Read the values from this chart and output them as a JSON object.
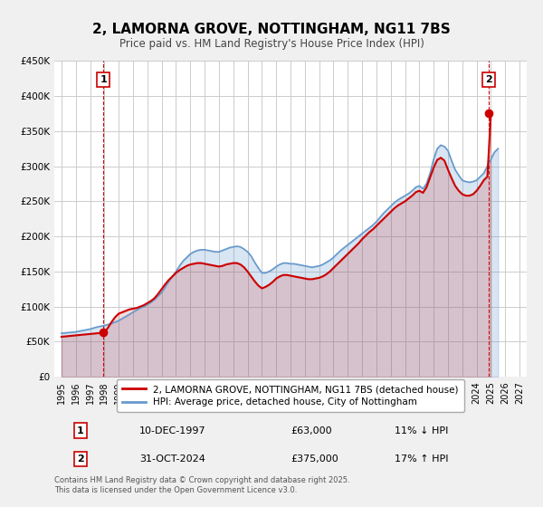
{
  "title": "2, LAMORNA GROVE, NOTTINGHAM, NG11 7BS",
  "subtitle": "Price paid vs. HM Land Registry's House Price Index (HPI)",
  "xlabel": "",
  "ylabel": "",
  "ylim": [
    0,
    450000
  ],
  "xlim": [
    1994.5,
    2027.5
  ],
  "yticks": [
    0,
    50000,
    100000,
    150000,
    200000,
    250000,
    300000,
    350000,
    400000,
    450000
  ],
  "ytick_labels": [
    "£0",
    "£50K",
    "£100K",
    "£150K",
    "£200K",
    "£250K",
    "£300K",
    "£350K",
    "£400K",
    "£450K"
  ],
  "xticks": [
    1995,
    1996,
    1997,
    1998,
    1999,
    2000,
    2001,
    2002,
    2003,
    2004,
    2005,
    2006,
    2007,
    2008,
    2009,
    2010,
    2011,
    2012,
    2013,
    2014,
    2015,
    2016,
    2017,
    2018,
    2019,
    2020,
    2021,
    2022,
    2023,
    2024,
    2025,
    2026,
    2027
  ],
  "bg_color": "#f0f0f0",
  "plot_bg_color": "#ffffff",
  "grid_color": "#cccccc",
  "hpi_color": "#6699cc",
  "price_color": "#cc0000",
  "sale1_x": 1997.92,
  "sale1_y": 63000,
  "sale2_x": 2024.83,
  "sale2_y": 375000,
  "legend_label1": "2, LAMORNA GROVE, NOTTINGHAM, NG11 7BS (detached house)",
  "legend_label2": "HPI: Average price, detached house, City of Nottingham",
  "table_row1": [
    "1",
    "10-DEC-1997",
    "£63,000",
    "11% ↓ HPI"
  ],
  "table_row2": [
    "2",
    "31-OCT-2024",
    "£375,000",
    "17% ↑ HPI"
  ],
  "footnote": "Contains HM Land Registry data © Crown copyright and database right 2025.\nThis data is licensed under the Open Government Licence v3.0.",
  "hpi_data_x": [
    1995.0,
    1995.25,
    1995.5,
    1995.75,
    1996.0,
    1996.25,
    1996.5,
    1996.75,
    1997.0,
    1997.25,
    1997.5,
    1997.75,
    1998.0,
    1998.25,
    1998.5,
    1998.75,
    1999.0,
    1999.25,
    1999.5,
    1999.75,
    2000.0,
    2000.25,
    2000.5,
    2000.75,
    2001.0,
    2001.25,
    2001.5,
    2001.75,
    2002.0,
    2002.25,
    2002.5,
    2002.75,
    2003.0,
    2003.25,
    2003.5,
    2003.75,
    2004.0,
    2004.25,
    2004.5,
    2004.75,
    2005.0,
    2005.25,
    2005.5,
    2005.75,
    2006.0,
    2006.25,
    2006.5,
    2006.75,
    2007.0,
    2007.25,
    2007.5,
    2007.75,
    2008.0,
    2008.25,
    2008.5,
    2008.75,
    2009.0,
    2009.25,
    2009.5,
    2009.75,
    2010.0,
    2010.25,
    2010.5,
    2010.75,
    2011.0,
    2011.25,
    2011.5,
    2011.75,
    2012.0,
    2012.25,
    2012.5,
    2012.75,
    2013.0,
    2013.25,
    2013.5,
    2013.75,
    2014.0,
    2014.25,
    2014.5,
    2014.75,
    2015.0,
    2015.25,
    2015.5,
    2015.75,
    2016.0,
    2016.25,
    2016.5,
    2016.75,
    2017.0,
    2017.25,
    2017.5,
    2017.75,
    2018.0,
    2018.25,
    2018.5,
    2018.75,
    2019.0,
    2019.25,
    2019.5,
    2019.75,
    2020.0,
    2020.25,
    2020.5,
    2020.75,
    2021.0,
    2021.25,
    2021.5,
    2021.75,
    2022.0,
    2022.25,
    2022.5,
    2022.75,
    2023.0,
    2023.25,
    2023.5,
    2023.75,
    2024.0,
    2024.25,
    2024.5,
    2024.75,
    2025.0,
    2025.25,
    2025.5
  ],
  "hpi_data_y": [
    62000,
    62500,
    63000,
    63500,
    64000,
    65000,
    66000,
    67000,
    68000,
    69500,
    71000,
    72000,
    73000,
    74500,
    76000,
    78000,
    80000,
    83000,
    86000,
    89000,
    92000,
    95000,
    98000,
    100000,
    103000,
    106000,
    110000,
    115000,
    120000,
    128000,
    136000,
    143000,
    150000,
    158000,
    165000,
    170000,
    175000,
    178000,
    180000,
    181000,
    181000,
    180000,
    179000,
    178000,
    178000,
    180000,
    182000,
    184000,
    185000,
    186000,
    185000,
    182000,
    178000,
    172000,
    163000,
    155000,
    148000,
    148000,
    150000,
    153000,
    157000,
    160000,
    162000,
    162000,
    161000,
    161000,
    160000,
    159000,
    158000,
    157000,
    156000,
    157000,
    158000,
    160000,
    163000,
    166000,
    170000,
    175000,
    180000,
    184000,
    188000,
    192000,
    196000,
    200000,
    204000,
    208000,
    212000,
    216000,
    221000,
    227000,
    233000,
    238000,
    243000,
    248000,
    252000,
    255000,
    258000,
    261000,
    265000,
    270000,
    272000,
    268000,
    275000,
    290000,
    310000,
    325000,
    330000,
    328000,
    322000,
    308000,
    295000,
    287000,
    280000,
    278000,
    277000,
    278000,
    280000,
    285000,
    290000,
    300000,
    310000,
    320000,
    325000
  ],
  "price_data_x": [
    1995.0,
    1995.25,
    1995.5,
    1995.75,
    1996.0,
    1996.25,
    1996.5,
    1996.75,
    1997.0,
    1997.25,
    1997.5,
    1997.75,
    1998.0,
    1998.25,
    1998.5,
    1998.75,
    1999.0,
    1999.25,
    1999.5,
    1999.75,
    2000.0,
    2000.25,
    2000.5,
    2000.75,
    2001.0,
    2001.25,
    2001.5,
    2001.75,
    2002.0,
    2002.25,
    2002.5,
    2002.75,
    2003.0,
    2003.25,
    2003.5,
    2003.75,
    2004.0,
    2004.25,
    2004.5,
    2004.75,
    2005.0,
    2005.25,
    2005.5,
    2005.75,
    2006.0,
    2006.25,
    2006.5,
    2006.75,
    2007.0,
    2007.25,
    2007.5,
    2007.75,
    2008.0,
    2008.25,
    2008.5,
    2008.75,
    2009.0,
    2009.25,
    2009.5,
    2009.75,
    2010.0,
    2010.25,
    2010.5,
    2010.75,
    2011.0,
    2011.25,
    2011.5,
    2011.75,
    2012.0,
    2012.25,
    2012.5,
    2012.75,
    2013.0,
    2013.25,
    2013.5,
    2013.75,
    2014.0,
    2014.25,
    2014.5,
    2014.75,
    2015.0,
    2015.25,
    2015.5,
    2015.75,
    2016.0,
    2016.25,
    2016.5,
    2016.75,
    2017.0,
    2017.25,
    2017.5,
    2017.75,
    2018.0,
    2018.25,
    2018.5,
    2018.75,
    2019.0,
    2019.25,
    2019.5,
    2019.75,
    2020.0,
    2020.25,
    2020.5,
    2020.75,
    2021.0,
    2021.25,
    2021.5,
    2021.75,
    2022.0,
    2022.25,
    2022.5,
    2022.75,
    2023.0,
    2023.25,
    2023.5,
    2023.75,
    2024.0,
    2024.25,
    2024.5,
    2024.75,
    2025.0
  ],
  "price_data_y": [
    57000,
    57500,
    58000,
    58500,
    59000,
    59500,
    60000,
    60500,
    61000,
    61500,
    62000,
    62500,
    63000,
    70000,
    78000,
    85000,
    90000,
    92000,
    94000,
    96000,
    97000,
    98000,
    100000,
    102000,
    105000,
    108000,
    112000,
    118000,
    125000,
    132000,
    138000,
    143000,
    148000,
    152000,
    155000,
    158000,
    160000,
    161000,
    162000,
    162000,
    161000,
    160000,
    159000,
    158000,
    157000,
    158000,
    160000,
    161000,
    162000,
    162000,
    160000,
    156000,
    150000,
    143000,
    136000,
    130000,
    126000,
    128000,
    131000,
    135000,
    140000,
    143000,
    145000,
    145000,
    144000,
    143000,
    142000,
    141000,
    140000,
    139000,
    139000,
    140000,
    141000,
    143000,
    146000,
    150000,
    155000,
    160000,
    165000,
    170000,
    175000,
    180000,
    185000,
    190000,
    196000,
    201000,
    206000,
    210000,
    215000,
    220000,
    225000,
    230000,
    235000,
    240000,
    244000,
    247000,
    250000,
    254000,
    258000,
    263000,
    265000,
    262000,
    270000,
    284000,
    298000,
    309000,
    312000,
    308000,
    295000,
    283000,
    272000,
    265000,
    260000,
    258000,
    258000,
    260000,
    265000,
    272000,
    280000,
    285000,
    375000
  ]
}
